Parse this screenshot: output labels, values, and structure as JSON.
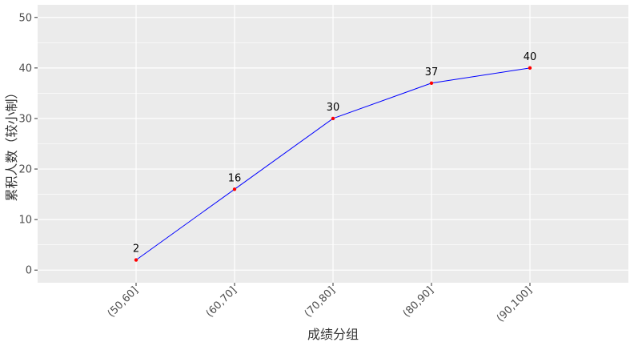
{
  "chart_data": {
    "type": "line",
    "categories": [
      "(50,60]",
      "(60,70]",
      "(70,80]",
      "(80,90]",
      "(90,100]"
    ],
    "values": [
      2,
      16,
      30,
      37,
      40
    ],
    "data_labels": [
      "2",
      "16",
      "30",
      "37",
      "40"
    ],
    "xlabel": "成绩分组",
    "ylabel": "累积人数（较小制）",
    "ylim": [
      -2.5,
      52.5
    ],
    "yticks": [
      0,
      10,
      20,
      30,
      40,
      50
    ],
    "ytick_labels": [
      "0",
      "10",
      "20",
      "30",
      "40",
      "50"
    ],
    "grid": true,
    "colors": {
      "panel_background": "#ebebeb",
      "grid": "#ffffff",
      "line": "#0000ff",
      "points": "#ff0000"
    }
  }
}
